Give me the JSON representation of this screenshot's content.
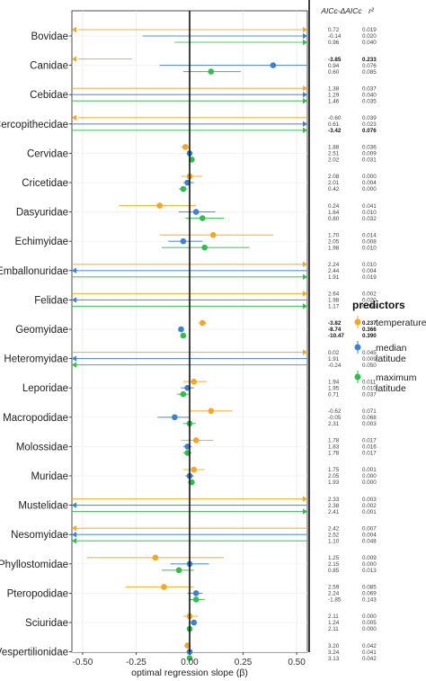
{
  "chart_data": {
    "type": "scatter",
    "subtype": "dot-and-interval",
    "xlabel": "optimal regression slope (β)",
    "xlim": [
      -0.55,
      0.55
    ],
    "xticks": [
      -0.5,
      -0.25,
      0.0,
      0.25,
      0.5
    ],
    "xtick_labels": [
      "-0.50",
      "-0.25",
      "0.00",
      "0.25",
      "0.50"
    ],
    "stats_headers": [
      "AICc-ΔAICc",
      "r²"
    ],
    "legend": {
      "title": "predictors",
      "placement": "right",
      "items": [
        {
          "key": "temperature",
          "label": [
            "temperature"
          ],
          "color": "#f5a623"
        },
        {
          "key": "median_latitude",
          "label": [
            "median",
            "latitude"
          ],
          "color": "#3b82d6"
        },
        {
          "key": "maximum_latitude",
          "label": [
            "maximum",
            "latitude"
          ],
          "color": "#2fbf4a"
        }
      ]
    },
    "families": [
      {
        "name": "Bovidae",
        "series": [
          {
            "p": "temperature",
            "est": null,
            "lo": -0.52,
            "hi": 0.55,
            "arrow": "both",
            "aicc": "0.72",
            "r2": "0.019",
            "bold": false
          },
          {
            "p": "median_latitude",
            "est": null,
            "lo": -0.22,
            "hi": 0.55,
            "arrow": "right",
            "aicc": "-0.14",
            "r2": "0.020",
            "bold": false
          },
          {
            "p": "maximum_latitude",
            "est": null,
            "lo": -0.07,
            "hi": 0.55,
            "arrow": "right",
            "aicc": "0.96",
            "r2": "0.040",
            "bold": false
          }
        ]
      },
      {
        "name": "Canidae",
        "series": [
          {
            "p": "temperature",
            "est": null,
            "lo": -0.52,
            "hi": -0.27,
            "arrow": "left",
            "aicc": "-3.85",
            "r2": "0.233",
            "bold": true
          },
          {
            "p": "median_latitude",
            "est": 0.39,
            "lo": -0.14,
            "hi": 0.55,
            "arrow": "none",
            "aicc": "0.94",
            "r2": "0.076",
            "bold": false
          },
          {
            "p": "maximum_latitude",
            "est": 0.1,
            "lo": -0.03,
            "hi": 0.24,
            "arrow": "none",
            "aicc": "0.60",
            "r2": "0.085",
            "bold": false
          }
        ]
      },
      {
        "name": "Cebidae",
        "series": [
          {
            "p": "temperature",
            "est": null,
            "lo": -0.55,
            "hi": 0.55,
            "arrow": "right",
            "aicc": "1.38",
            "r2": "0.037",
            "bold": false
          },
          {
            "p": "median_latitude",
            "est": null,
            "lo": -0.55,
            "hi": 0.55,
            "arrow": "right",
            "aicc": "1.29",
            "r2": "0.040",
            "bold": false
          },
          {
            "p": "maximum_latitude",
            "est": null,
            "lo": -0.55,
            "hi": 0.55,
            "arrow": "right",
            "aicc": "1.46",
            "r2": "0.035",
            "bold": false
          }
        ]
      },
      {
        "name": "Cercopithecidae",
        "series": [
          {
            "p": "temperature",
            "est": null,
            "lo": -0.52,
            "hi": 0.55,
            "arrow": "left",
            "aicc": "-0.60",
            "r2": "0.039",
            "bold": false
          },
          {
            "p": "median_latitude",
            "est": null,
            "lo": -0.55,
            "hi": 0.55,
            "arrow": "right",
            "aicc": "0.61",
            "r2": "0.023",
            "bold": false
          },
          {
            "p": "maximum_latitude",
            "est": null,
            "lo": -0.55,
            "hi": 0.55,
            "arrow": "right",
            "aicc": "-3.42",
            "r2": "0.076",
            "bold": true
          }
        ]
      },
      {
        "name": "Cervidae",
        "series": [
          {
            "p": "temperature",
            "est": -0.02,
            "lo": -0.04,
            "hi": 0.0,
            "arrow": "none",
            "aicc": "1.88",
            "r2": "0.036",
            "bold": false
          },
          {
            "p": "median_latitude",
            "est": 0.0,
            "lo": -0.01,
            "hi": 0.01,
            "arrow": "none",
            "aicc": "2.51",
            "r2": "0.009",
            "bold": false
          },
          {
            "p": "maximum_latitude",
            "est": 0.01,
            "lo": 0.0,
            "hi": 0.02,
            "arrow": "none",
            "aicc": "2.02",
            "r2": "0.031",
            "bold": false
          }
        ]
      },
      {
        "name": "Cricetidae",
        "series": [
          {
            "p": "temperature",
            "est": 0.0,
            "lo": -0.04,
            "hi": 0.06,
            "arrow": "none",
            "aicc": "2.08",
            "r2": "0.000",
            "bold": false
          },
          {
            "p": "median_latitude",
            "est": -0.01,
            "lo": -0.03,
            "hi": 0.02,
            "arrow": "none",
            "aicc": "2.01",
            "r2": "0.004",
            "bold": false
          },
          {
            "p": "maximum_latitude",
            "est": -0.03,
            "lo": -0.05,
            "hi": -0.01,
            "arrow": "none",
            "aicc": "0.42",
            "r2": "0.000",
            "bold": false
          }
        ]
      },
      {
        "name": "Dasyuridae",
        "series": [
          {
            "p": "temperature",
            "est": -0.14,
            "lo": -0.33,
            "hi": 0.03,
            "arrow": "none",
            "aicc": "0.24",
            "r2": "0.041",
            "bold": false
          },
          {
            "p": "median_latitude",
            "est": 0.03,
            "lo": -0.05,
            "hi": 0.12,
            "arrow": "none",
            "aicc": "1.64",
            "r2": "0.010",
            "bold": false
          },
          {
            "p": "maximum_latitude",
            "est": 0.06,
            "lo": -0.02,
            "hi": 0.16,
            "arrow": "none",
            "aicc": "0.80",
            "r2": "0.032",
            "bold": false
          }
        ]
      },
      {
        "name": "Echimyidae",
        "series": [
          {
            "p": "temperature",
            "est": 0.11,
            "lo": -0.14,
            "hi": 0.39,
            "arrow": "none",
            "aicc": "1.70",
            "r2": "0.014",
            "bold": false
          },
          {
            "p": "median_latitude",
            "est": -0.03,
            "lo": -0.1,
            "hi": 0.06,
            "arrow": "none",
            "aicc": "2.05",
            "r2": "0.008",
            "bold": false
          },
          {
            "p": "maximum_latitude",
            "est": 0.07,
            "lo": -0.13,
            "hi": 0.28,
            "arrow": "none",
            "aicc": "1.98",
            "r2": "0.010",
            "bold": false
          }
        ]
      },
      {
        "name": "Emballonuridae",
        "series": [
          {
            "p": "temperature",
            "est": null,
            "lo": -0.55,
            "hi": 0.55,
            "arrow": "right",
            "aicc": "2.24",
            "r2": "0.010",
            "bold": false
          },
          {
            "p": "median_latitude",
            "est": null,
            "lo": -0.55,
            "hi": 0.55,
            "arrow": "left",
            "aicc": "2.44",
            "r2": "0.004",
            "bold": false
          },
          {
            "p": "maximum_latitude",
            "est": null,
            "lo": -0.55,
            "hi": 0.55,
            "arrow": "right",
            "aicc": "1.91",
            "r2": "0.019",
            "bold": false
          }
        ]
      },
      {
        "name": "Felidae",
        "series": [
          {
            "p": "temperature",
            "est": null,
            "lo": -0.55,
            "hi": 0.55,
            "arrow": "right",
            "aicc": "2.64",
            "r2": "0.002",
            "bold": false
          },
          {
            "p": "median_latitude",
            "est": null,
            "lo": -0.55,
            "hi": 0.55,
            "arrow": "left",
            "aicc": "1.98",
            "r2": "0.020",
            "bold": false
          },
          {
            "p": "maximum_latitude",
            "est": null,
            "lo": -0.55,
            "hi": 0.55,
            "arrow": "right",
            "aicc": "1.17",
            "r2": "0.055",
            "bold": false
          }
        ]
      },
      {
        "name": "Geomyidae",
        "series": [
          {
            "p": "temperature",
            "est": 0.06,
            "lo": 0.04,
            "hi": 0.08,
            "arrow": "none",
            "aicc": "-3.82",
            "r2": "0.237",
            "bold": true
          },
          {
            "p": "median_latitude",
            "est": -0.04,
            "lo": -0.05,
            "hi": -0.03,
            "arrow": "none",
            "aicc": "-8.74",
            "r2": "0.366",
            "bold": true
          },
          {
            "p": "maximum_latitude",
            "est": -0.03,
            "lo": -0.04,
            "hi": -0.02,
            "arrow": "none",
            "aicc": "-10.47",
            "r2": "0.390",
            "bold": true
          }
        ]
      },
      {
        "name": "Heteromyidae",
        "series": [
          {
            "p": "temperature",
            "est": null,
            "lo": -0.55,
            "hi": 0.55,
            "arrow": "right",
            "aicc": "0.02",
            "r2": "0.045",
            "bold": false
          },
          {
            "p": "median_latitude",
            "est": null,
            "lo": -0.55,
            "hi": 0.55,
            "arrow": "left",
            "aicc": "1.91",
            "r2": "0.009",
            "bold": false
          },
          {
            "p": "maximum_latitude",
            "est": null,
            "lo": -0.55,
            "hi": 0.55,
            "arrow": "left",
            "aicc": "-0.24",
            "r2": "0.050",
            "bold": false
          }
        ]
      },
      {
        "name": "Leporidae",
        "series": [
          {
            "p": "temperature",
            "est": 0.02,
            "lo": -0.03,
            "hi": 0.08,
            "arrow": "none",
            "aicc": "1.94",
            "r2": "0.011",
            "bold": false
          },
          {
            "p": "median_latitude",
            "est": -0.01,
            "lo": -0.04,
            "hi": 0.02,
            "arrow": "none",
            "aicc": "1.95",
            "r2": "0.010",
            "bold": false
          },
          {
            "p": "maximum_latitude",
            "est": -0.03,
            "lo": -0.06,
            "hi": 0.0,
            "arrow": "none",
            "aicc": "0.71",
            "r2": "0.037",
            "bold": false
          }
        ]
      },
      {
        "name": "Macropodidae",
        "series": [
          {
            "p": "temperature",
            "est": 0.1,
            "lo": 0.0,
            "hi": 0.2,
            "arrow": "none",
            "aicc": "-0.62",
            "r2": "0.071",
            "bold": false
          },
          {
            "p": "median_latitude",
            "est": -0.07,
            "lo": -0.15,
            "hi": 0.0,
            "arrow": "none",
            "aicc": "-0.05",
            "r2": "0.068",
            "bold": false
          },
          {
            "p": "maximum_latitude",
            "est": 0.0,
            "lo": -0.03,
            "hi": 0.03,
            "arrow": "none",
            "aicc": "2.31",
            "r2": "0.003",
            "bold": false
          }
        ]
      },
      {
        "name": "Molossidae",
        "series": [
          {
            "p": "temperature",
            "est": 0.03,
            "lo": -0.04,
            "hi": 0.11,
            "arrow": "none",
            "aicc": "1.78",
            "r2": "0.017",
            "bold": false
          },
          {
            "p": "median_latitude",
            "est": -0.01,
            "lo": -0.03,
            "hi": 0.01,
            "arrow": "none",
            "aicc": "1.83",
            "r2": "0.016",
            "bold": false
          },
          {
            "p": "maximum_latitude",
            "est": -0.01,
            "lo": -0.03,
            "hi": 0.01,
            "arrow": "none",
            "aicc": "1.78",
            "r2": "0.017",
            "bold": false
          }
        ]
      },
      {
        "name": "Muridae",
        "series": [
          {
            "p": "temperature",
            "est": 0.02,
            "lo": -0.03,
            "hi": 0.07,
            "arrow": "none",
            "aicc": "1.75",
            "r2": "0.001",
            "bold": false
          },
          {
            "p": "median_latitude",
            "est": 0.0,
            "lo": -0.02,
            "hi": 0.02,
            "arrow": "none",
            "aicc": "2.05",
            "r2": "0.000",
            "bold": false
          },
          {
            "p": "maximum_latitude",
            "est": 0.01,
            "lo": -0.01,
            "hi": 0.02,
            "arrow": "none",
            "aicc": "1.93",
            "r2": "0.000",
            "bold": false
          }
        ]
      },
      {
        "name": "Mustelidae",
        "series": [
          {
            "p": "temperature",
            "est": null,
            "lo": -0.55,
            "hi": 0.55,
            "arrow": "right",
            "aicc": "2.33",
            "r2": "0.003",
            "bold": false
          },
          {
            "p": "median_latitude",
            "est": null,
            "lo": -0.55,
            "hi": 0.55,
            "arrow": "left",
            "aicc": "2.38",
            "r2": "0.002",
            "bold": false
          },
          {
            "p": "maximum_latitude",
            "est": null,
            "lo": -0.55,
            "hi": 0.55,
            "arrow": "right",
            "aicc": "2.41",
            "r2": "0.001",
            "bold": false
          }
        ]
      },
      {
        "name": "Nesomyidae",
        "series": [
          {
            "p": "temperature",
            "est": null,
            "lo": -0.55,
            "hi": 0.55,
            "arrow": "left",
            "aicc": "2.42",
            "r2": "0.007",
            "bold": false
          },
          {
            "p": "median_latitude",
            "est": null,
            "lo": -0.55,
            "hi": 0.55,
            "arrow": "left",
            "aicc": "2.52",
            "r2": "0.004",
            "bold": false
          },
          {
            "p": "maximum_latitude",
            "est": null,
            "lo": -0.55,
            "hi": 0.55,
            "arrow": "left",
            "aicc": "1.10",
            "r2": "0.048",
            "bold": false
          }
        ]
      },
      {
        "name": "Phyllostomidae",
        "series": [
          {
            "p": "temperature",
            "est": -0.16,
            "lo": -0.48,
            "hi": 0.16,
            "arrow": "none",
            "aicc": "1.25",
            "r2": "0.009",
            "bold": false
          },
          {
            "p": "median_latitude",
            "est": 0.0,
            "lo": -0.09,
            "hi": 0.09,
            "arrow": "none",
            "aicc": "2.15",
            "r2": "0.000",
            "bold": false
          },
          {
            "p": "maximum_latitude",
            "est": -0.05,
            "lo": -0.13,
            "hi": 0.02,
            "arrow": "none",
            "aicc": "0.85",
            "r2": "0.013",
            "bold": false
          }
        ]
      },
      {
        "name": "Pteropodidae",
        "series": [
          {
            "p": "temperature",
            "est": -0.12,
            "lo": -0.3,
            "hi": 0.02,
            "arrow": "none",
            "aicc": "2.59",
            "r2": "0.085",
            "bold": false
          },
          {
            "p": "median_latitude",
            "est": 0.03,
            "lo": -0.01,
            "hi": 0.06,
            "arrow": "none",
            "aicc": "2.24",
            "r2": "0.069",
            "bold": false
          },
          {
            "p": "maximum_latitude",
            "est": 0.03,
            "lo": 0.0,
            "hi": 0.07,
            "arrow": "none",
            "aicc": "-1.85",
            "r2": "0.143",
            "bold": false
          }
        ]
      },
      {
        "name": "Sciuridae",
        "series": [
          {
            "p": "temperature",
            "est": 0.0,
            "lo": -0.03,
            "hi": 0.04,
            "arrow": "none",
            "aicc": "2.11",
            "r2": "0.000",
            "bold": false
          },
          {
            "p": "median_latitude",
            "est": 0.02,
            "lo": 0.0,
            "hi": 0.03,
            "arrow": "none",
            "aicc": "1.24",
            "r2": "0.005",
            "bold": false
          },
          {
            "p": "maximum_latitude",
            "est": 0.0,
            "lo": -0.01,
            "hi": 0.01,
            "arrow": "none",
            "aicc": "2.11",
            "r2": "0.000",
            "bold": false
          }
        ]
      },
      {
        "name": "Vespertilionidae",
        "series": [
          {
            "p": "temperature",
            "est": -0.01,
            "lo": -0.02,
            "hi": 0.0,
            "arrow": "none",
            "aicc": "3.20",
            "r2": "0.042",
            "bold": false
          },
          {
            "p": "median_latitude",
            "est": 0.0,
            "lo": -0.01,
            "hi": 0.01,
            "arrow": "none",
            "aicc": "3.24",
            "r2": "0.041",
            "bold": false
          },
          {
            "p": "maximum_latitude",
            "est": 0.0,
            "lo": -0.01,
            "hi": 0.01,
            "arrow": "none",
            "aicc": "3.13",
            "r2": "0.042",
            "bold": false
          }
        ]
      }
    ]
  }
}
